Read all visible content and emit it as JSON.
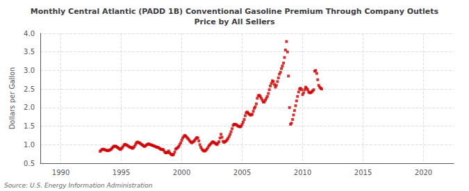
{
  "chart_data": {
    "type": "scatter",
    "title": "Monthly Central Atlantic (PADD 1B) Conventional Gasoline Premium Through Company Outlets\nPrice by All Sellers",
    "ylabel": "Dollars per Gallon",
    "annotations": [
      "Source: U.S. Energy Information Administration"
    ],
    "color": "#cc0000",
    "marker": "square",
    "grid": true,
    "xlim": [
      1988.3,
      2022.5
    ],
    "xticks": [
      1990,
      1995,
      2000,
      2005,
      2010,
      2015,
      2020
    ],
    "ylim": [
      0.5,
      4.0
    ],
    "yticks": [
      0.5,
      {
        "value": 1.0,
        "label": "1.0"
      },
      1.5,
      {
        "value": 2.0,
        "label": "2.0"
      },
      2.5,
      {
        "value": 3.0,
        "label": "3.0"
      },
      3.5,
      {
        "value": 4.0,
        "label": "4.0"
      }
    ],
    "x": [
      1993.25,
      1993.33,
      1993.42,
      1993.5,
      1993.58,
      1993.67,
      1993.75,
      1993.83,
      1993.92,
      1994.0,
      1994.08,
      1994.17,
      1994.25,
      1994.33,
      1994.42,
      1994.5,
      1994.58,
      1994.67,
      1994.75,
      1994.83,
      1994.92,
      1995.0,
      1995.08,
      1995.17,
      1995.25,
      1995.33,
      1995.42,
      1995.5,
      1995.58,
      1995.67,
      1995.75,
      1995.83,
      1995.92,
      1996.0,
      1996.08,
      1996.17,
      1996.25,
      1996.33,
      1996.42,
      1996.5,
      1996.58,
      1996.67,
      1996.75,
      1996.83,
      1996.92,
      1997.0,
      1997.08,
      1997.17,
      1997.25,
      1997.33,
      1997.42,
      1997.5,
      1997.58,
      1997.67,
      1997.75,
      1997.83,
      1997.92,
      1998.0,
      1998.08,
      1998.17,
      1998.25,
      1998.33,
      1998.42,
      1998.5,
      1998.58,
      1998.67,
      1998.75,
      1998.83,
      1998.92,
      1999.0,
      1999.08,
      1999.17,
      1999.25,
      1999.33,
      1999.42,
      1999.5,
      1999.58,
      1999.67,
      1999.75,
      1999.83,
      1999.92,
      2000.0,
      2000.08,
      2000.17,
      2000.25,
      2000.33,
      2000.42,
      2000.5,
      2000.58,
      2000.67,
      2000.75,
      2000.83,
      2000.92,
      2001.0,
      2001.08,
      2001.17,
      2001.25,
      2001.33,
      2001.42,
      2001.5,
      2001.58,
      2001.67,
      2001.75,
      2001.83,
      2001.92,
      2002.0,
      2002.08,
      2002.17,
      2002.25,
      2002.33,
      2002.42,
      2002.5,
      2002.58,
      2002.67,
      2002.75,
      2002.83,
      2002.92,
      2003.0,
      2003.08,
      2003.17,
      2003.25,
      2003.33,
      2003.42,
      2003.5,
      2003.58,
      2003.67,
      2003.75,
      2003.83,
      2003.92,
      2004.0,
      2004.08,
      2004.17,
      2004.25,
      2004.33,
      2004.42,
      2004.5,
      2004.58,
      2004.67,
      2004.75,
      2004.83,
      2004.92,
      2005.0,
      2005.08,
      2005.17,
      2005.25,
      2005.33,
      2005.42,
      2005.5,
      2005.58,
      2005.67,
      2005.75,
      2005.83,
      2005.92,
      2006.0,
      2006.08,
      2006.17,
      2006.25,
      2006.33,
      2006.42,
      2006.5,
      2006.58,
      2006.67,
      2006.75,
      2006.83,
      2006.92,
      2007.0,
      2007.08,
      2007.17,
      2007.25,
      2007.33,
      2007.42,
      2007.5,
      2007.58,
      2007.67,
      2007.75,
      2007.83,
      2007.92,
      2008.0,
      2008.08,
      2008.17,
      2008.25,
      2008.33,
      2008.42,
      2008.5,
      2008.58,
      2008.67,
      2008.75,
      2008.83,
      2008.92,
      2009.0,
      2009.08,
      2009.17,
      2009.25,
      2009.33,
      2009.42,
      2009.5,
      2009.58,
      2009.67,
      2009.75,
      2009.83,
      2009.92,
      2010.0,
      2010.08,
      2010.17,
      2010.25,
      2010.33,
      2010.42,
      2010.5,
      2010.58,
      2010.67,
      2010.75,
      2010.83,
      2010.92,
      2011.0,
      2011.08,
      2011.17,
      2011.25,
      2011.33,
      2011.42,
      2011.5,
      2011.58
    ],
    "values": [
      0.82,
      0.85,
      0.87,
      0.88,
      0.87,
      0.86,
      0.85,
      0.84,
      0.84,
      0.85,
      0.86,
      0.88,
      0.91,
      0.94,
      0.96,
      0.96,
      0.95,
      0.93,
      0.91,
      0.89,
      0.87,
      0.89,
      0.92,
      0.96,
      1.0,
      1.01,
      0.99,
      0.98,
      0.96,
      0.94,
      0.93,
      0.92,
      0.9,
      0.92,
      0.95,
      1.0,
      1.05,
      1.07,
      1.06,
      1.05,
      1.03,
      1.01,
      0.99,
      0.97,
      0.95,
      0.97,
      0.99,
      1.01,
      1.02,
      1.01,
      1.0,
      0.99,
      0.98,
      0.97,
      0.96,
      0.95,
      0.93,
      0.93,
      0.92,
      0.9,
      0.88,
      0.87,
      0.87,
      0.86,
      0.81,
      0.78,
      0.78,
      0.8,
      0.83,
      0.78,
      0.75,
      0.73,
      0.72,
      0.74,
      0.8,
      0.88,
      0.9,
      0.92,
      0.95,
      1.0,
      1.05,
      1.12,
      1.18,
      1.22,
      1.25,
      1.23,
      1.2,
      1.17,
      1.14,
      1.1,
      1.07,
      1.05,
      1.07,
      1.09,
      1.12,
      1.16,
      1.19,
      1.18,
      1.1,
      1.0,
      0.93,
      0.88,
      0.85,
      0.83,
      0.83,
      0.85,
      0.88,
      0.92,
      0.97,
      1.0,
      1.03,
      1.06,
      1.08,
      1.06,
      1.04,
      1.02,
      1.0,
      1.04,
      1.08,
      1.18,
      1.28,
      1.2,
      1.09,
      1.06,
      1.08,
      1.1,
      1.13,
      1.17,
      1.22,
      1.28,
      1.35,
      1.43,
      1.52,
      1.55,
      1.55,
      1.54,
      1.52,
      1.5,
      1.49,
      1.48,
      1.5,
      1.55,
      1.61,
      1.68,
      1.78,
      1.86,
      1.88,
      1.85,
      1.82,
      1.8,
      1.8,
      1.82,
      1.9,
      1.98,
      2.02,
      2.1,
      2.25,
      2.32,
      2.33,
      2.3,
      2.25,
      2.2,
      2.15,
      2.15,
      2.2,
      2.25,
      2.3,
      2.38,
      2.48,
      2.58,
      2.65,
      2.72,
      2.7,
      2.62,
      2.55,
      2.6,
      2.7,
      2.8,
      2.9,
      2.95,
      3.05,
      3.12,
      3.2,
      3.35,
      3.55,
      3.78,
      3.5,
      2.85,
      2.0,
      1.55,
      1.58,
      1.68,
      1.8,
      1.92,
      2.05,
      2.18,
      2.3,
      2.42,
      2.5,
      2.52,
      2.48,
      2.35,
      2.4,
      2.48,
      2.55,
      2.52,
      2.48,
      2.42,
      2.4,
      2.4,
      2.42,
      2.45,
      2.48,
      2.98,
      3.0,
      2.92,
      2.75,
      2.6,
      2.55,
      2.52,
      2.5
    ]
  }
}
